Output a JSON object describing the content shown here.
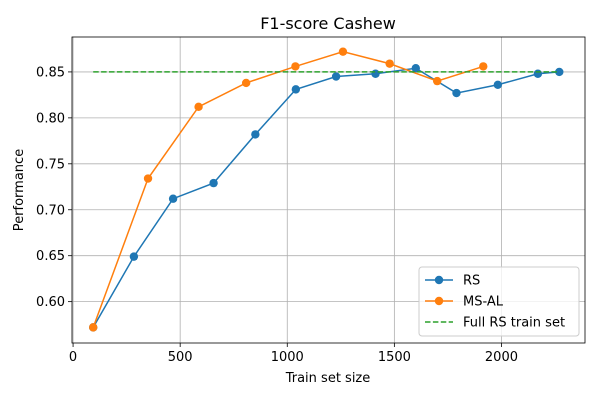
{
  "chart_data": {
    "type": "line",
    "title": "F1-score Cashew",
    "xlabel": "Train set size",
    "ylabel": "Performance",
    "xlim": [
      -5,
      2390
    ],
    "ylim": [
      0.555,
      0.888
    ],
    "xticks": [
      0,
      500,
      1000,
      1500,
      2000
    ],
    "yticks": [
      0.6,
      0.65,
      0.7,
      0.75,
      0.8,
      0.85
    ],
    "grid": true,
    "legend_position": "lower-right",
    "series": [
      {
        "name": "RS",
        "color": "#1f77b4",
        "line_style": "solid",
        "marker": "circle",
        "x": [
          94,
          284,
          467,
          656,
          851,
          1040,
          1228,
          1412,
          1600,
          1790,
          1983,
          2170,
          2270
        ],
        "y": [
          0.572,
          0.649,
          0.712,
          0.729,
          0.782,
          0.831,
          0.845,
          0.848,
          0.854,
          0.827,
          0.836,
          0.848,
          0.85
        ]
      },
      {
        "name": "MS-AL",
        "color": "#ff7f0e",
        "line_style": "solid",
        "marker": "circle",
        "x": [
          94,
          350,
          586,
          808,
          1038,
          1260,
          1478,
          1700,
          1915
        ],
        "y": [
          0.572,
          0.734,
          0.812,
          0.838,
          0.856,
          0.872,
          0.859,
          0.84,
          0.856
        ]
      },
      {
        "name": "Full RS train set",
        "color": "#2ca02c",
        "line_style": "dashed",
        "marker": "none",
        "x": [
          94,
          2270
        ],
        "y": [
          0.85,
          0.85
        ]
      }
    ]
  }
}
